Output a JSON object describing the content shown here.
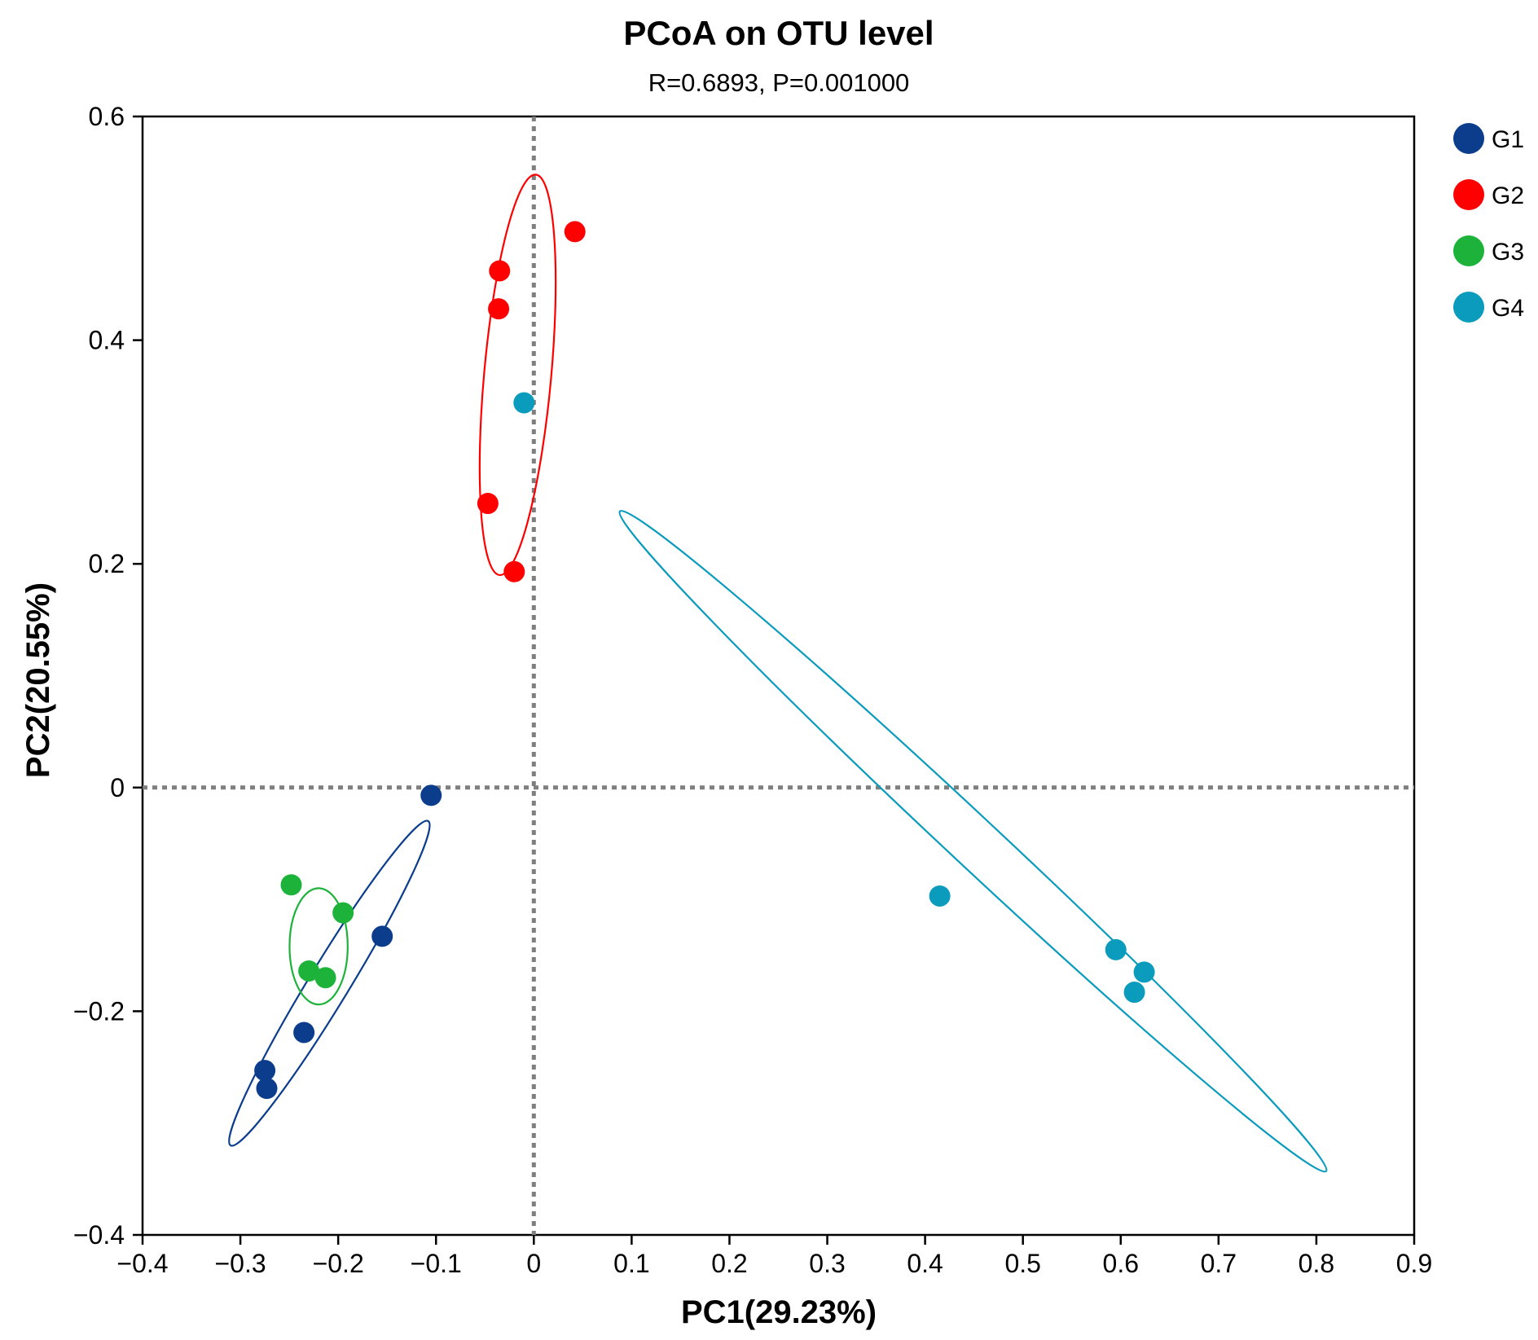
{
  "chart_data": {
    "type": "scatter",
    "title": "PCoA on OTU level",
    "subtitle": "R=0.6893, P=0.001000",
    "xlabel": "PC1(29.23%)",
    "ylabel": "PC2(20.55%)",
    "xlim": [
      -0.4,
      0.9
    ],
    "ylim": [
      -0.4,
      0.6
    ],
    "xticks": [
      -0.4,
      -0.3,
      -0.2,
      -0.1,
      0,
      0.1,
      0.2,
      0.3,
      0.4,
      0.5,
      0.6,
      0.7,
      0.8,
      0.9
    ],
    "xtick_labels": [
      "−0.4",
      "−0.3",
      "−0.2",
      "−0.1",
      "0",
      "0.1",
      "0.2",
      "0.3",
      "0.4",
      "0.5",
      "0.6",
      "0.7",
      "0.8",
      "0.9"
    ],
    "yticks": [
      -0.4,
      -0.2,
      0,
      0.2,
      0.4,
      0.6
    ],
    "ytick_labels": [
      "−0.4",
      "−0.2",
      "0",
      "0.2",
      "0.4",
      "0.6"
    ],
    "grid": false,
    "reference_lines": {
      "x": 0,
      "y": 0,
      "style": "dotted"
    },
    "legend_position": "right",
    "series": [
      {
        "name": "G1",
        "color": "#0b3d8c",
        "points": [
          [
            -0.105,
            -0.007
          ],
          [
            -0.155,
            -0.133
          ],
          [
            -0.235,
            -0.219
          ],
          [
            -0.275,
            -0.253
          ],
          [
            -0.273,
            -0.269
          ]
        ],
        "ellipse": {
          "endpoints": [
            [
              -0.31,
              -0.32
            ],
            [
              -0.108,
              -0.03
            ]
          ],
          "minor_half": 0.018
        }
      },
      {
        "name": "G2",
        "color": "#ff0000",
        "points": [
          [
            0.042,
            0.497
          ],
          [
            -0.035,
            0.462
          ],
          [
            -0.036,
            0.428
          ],
          [
            -0.047,
            0.254
          ],
          [
            -0.02,
            0.193
          ]
        ],
        "ellipse": {
          "endpoints": [
            [
              -0.035,
              0.19
            ],
            [
              0.002,
              0.548
            ]
          ],
          "minor_half": 0.03
        }
      },
      {
        "name": "G3",
        "color": "#1db33a",
        "points": [
          [
            -0.248,
            -0.087
          ],
          [
            -0.195,
            -0.112
          ],
          [
            -0.23,
            -0.164
          ],
          [
            -0.213,
            -0.17
          ]
        ],
        "ellipse": {
          "endpoints": [
            [
              -0.22,
              -0.09
            ],
            [
              -0.22,
              -0.194
            ]
          ],
          "minor_half": 0.026
        }
      },
      {
        "name": "G4",
        "color": "#0a9bbd",
        "points": [
          [
            -0.01,
            0.344
          ],
          [
            0.415,
            -0.097
          ],
          [
            0.595,
            -0.145
          ],
          [
            0.624,
            -0.165
          ],
          [
            0.614,
            -0.183
          ]
        ],
        "ellipse": {
          "endpoints": [
            [
              0.088,
              0.247
            ],
            [
              0.81,
              -0.343
            ]
          ],
          "minor_half": 0.022
        }
      }
    ]
  }
}
